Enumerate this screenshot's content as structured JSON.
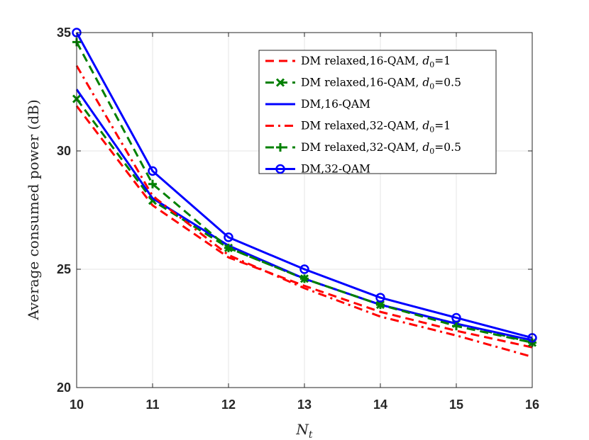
{
  "chart_data": {
    "type": "line",
    "title": "",
    "xlabel": "N_t",
    "xlabel_main": "N",
    "xlabel_sub": "t",
    "ylabel": "Average consumed power (dB)",
    "xlim": [
      10,
      16
    ],
    "ylim": [
      20,
      35
    ],
    "xticks": [
      "10",
      "11",
      "12",
      "13",
      "14",
      "15",
      "16"
    ],
    "yticks": [
      "20",
      "25",
      "30",
      "35"
    ],
    "grid": true,
    "legend_position": "top-right",
    "x": [
      10,
      11,
      12,
      13,
      14,
      15,
      16
    ],
    "series": [
      {
        "name": "DM relaxed,16-QAM, d0=1",
        "label_main": "DM relaxed,16-QAM, ",
        "label_var": "d",
        "label_sub": "0",
        "label_tail": "=1",
        "color": "#ff0000",
        "style": "dashed",
        "marker": "none",
        "values": [
          31.9,
          27.7,
          25.5,
          24.3,
          23.2,
          22.4,
          21.7
        ]
      },
      {
        "name": "DM relaxed,16-QAM, d0=0.5",
        "label_main": "DM relaxed,16-QAM, ",
        "label_var": "d",
        "label_sub": "0",
        "label_tail": "=0.5",
        "color": "#008000",
        "style": "dashed",
        "marker": "x",
        "values": [
          32.2,
          27.9,
          25.9,
          24.6,
          23.5,
          22.7,
          21.9
        ]
      },
      {
        "name": "DM,16-QAM",
        "label_main": "DM,16-QAM",
        "label_var": "",
        "label_sub": "",
        "label_tail": "",
        "color": "#0000ff",
        "style": "solid",
        "marker": "none",
        "values": [
          32.6,
          28.0,
          26.0,
          24.6,
          23.5,
          22.7,
          22.0
        ]
      },
      {
        "name": "DM relaxed,32-QAM, d0=1",
        "label_main": "DM relaxed,32-QAM, ",
        "label_var": "d",
        "label_sub": "0",
        "label_tail": "=1",
        "color": "#ff0000",
        "style": "dashdot",
        "marker": "none",
        "values": [
          33.6,
          28.1,
          25.6,
          24.2,
          23.0,
          22.2,
          21.3
        ]
      },
      {
        "name": "DM relaxed,32-QAM, d0=0.5",
        "label_main": "DM relaxed,32-QAM, ",
        "label_var": "d",
        "label_sub": "0",
        "label_tail": "=0.5",
        "color": "#008000",
        "style": "dashed",
        "marker": "plus",
        "values": [
          34.6,
          28.6,
          25.9,
          24.6,
          23.5,
          22.6,
          21.9
        ]
      },
      {
        "name": "DM,32-QAM",
        "label_main": "DM,32-QAM",
        "label_var": "",
        "label_sub": "",
        "label_tail": "",
        "color": "#0000ff",
        "style": "solid",
        "marker": "circle",
        "values": [
          35.0,
          29.15,
          26.35,
          25.0,
          23.8,
          22.95,
          22.1
        ]
      }
    ]
  }
}
